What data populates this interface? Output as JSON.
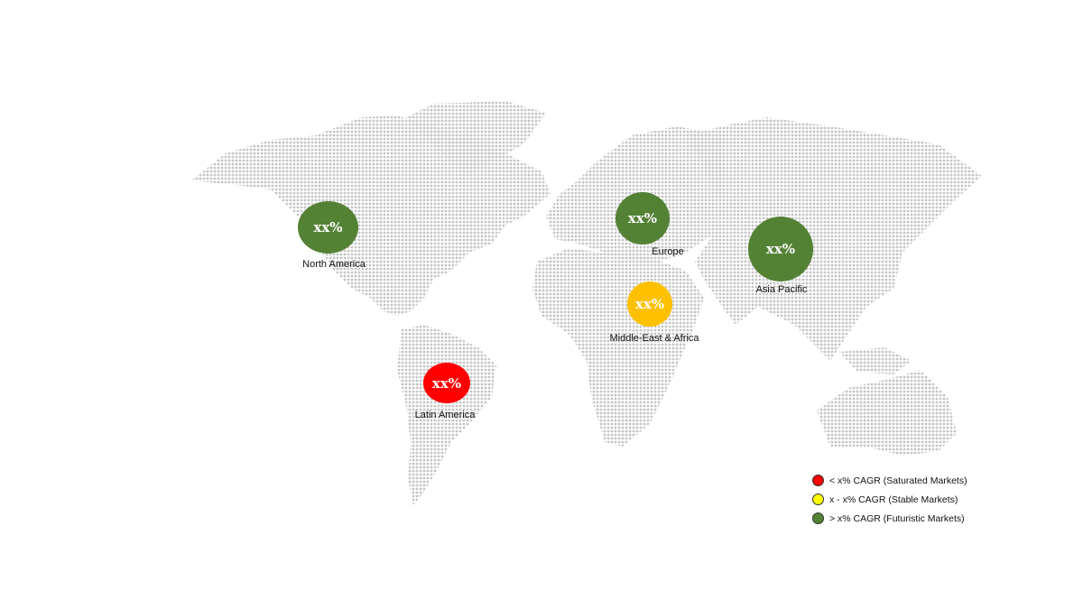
{
  "regions": [
    {
      "name": "North America",
      "value": "xx%",
      "color": "#548235"
    },
    {
      "name": "Europe",
      "value": "xx%",
      "color": "#548235"
    },
    {
      "name": "Asia Pacific",
      "value": "xx%",
      "color": "#548235"
    },
    {
      "name": "Middle-East & Africa",
      "value": "xx%",
      "color": "#FFC000"
    },
    {
      "name": "Latin America",
      "value": "xx%",
      "color": "#FF0000"
    }
  ],
  "legend": [
    {
      "label": "< x% CAGR (Saturated Markets)",
      "color": "#FF0000"
    },
    {
      "label": "x - x% CAGR (Stable Markets)",
      "color": "#FFFF00"
    },
    {
      "label": "> x% CAGR (Futuristic Markets)",
      "color": "#548235"
    }
  ],
  "map_dot_color": "#c8c8c8"
}
